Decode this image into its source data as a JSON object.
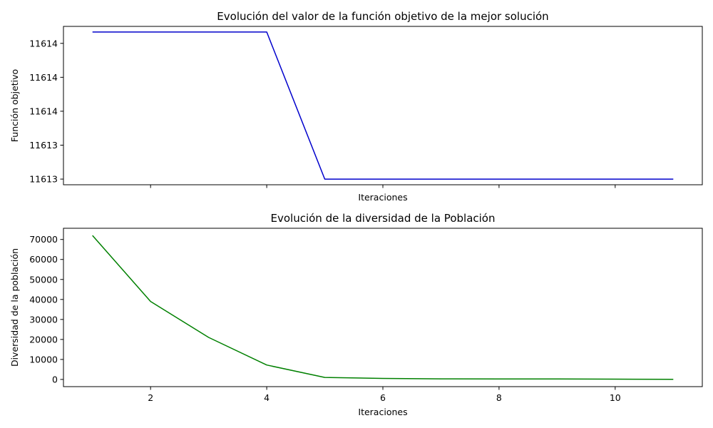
{
  "chart_data": [
    {
      "type": "line",
      "title": "Evolución del valor de la función objetivo de la mejor solución",
      "xlabel": "Iteraciones",
      "ylabel": "Función objetivo",
      "x": [
        1,
        2,
        3,
        4,
        5,
        6,
        7,
        8,
        9,
        10,
        11
      ],
      "series": [
        {
          "color": "#0000cc",
          "values": [
            11614.2,
            11614.2,
            11614.2,
            11614.2,
            11612.9,
            11612.9,
            11612.9,
            11612.9,
            11612.9,
            11612.9,
            11612.9
          ]
        }
      ],
      "xlim": [
        0.5,
        11.5
      ],
      "ylim": [
        11612.85,
        11614.25
      ],
      "xticks": [
        2,
        4,
        6,
        8,
        10
      ],
      "xtick_labels_visible": false,
      "yticks": [
        {
          "value": 11612.9,
          "label": "11613"
        },
        {
          "value": 11613.2,
          "label": "11613"
        },
        {
          "value": 11613.5,
          "label": "11614"
        },
        {
          "value": 11613.8,
          "label": "11614"
        },
        {
          "value": 11614.1,
          "label": "11614"
        }
      ],
      "grid": false,
      "legend": "none"
    },
    {
      "type": "line",
      "title": "Evolución de la diversidad de la Población",
      "xlabel": "Iteraciones",
      "ylabel": "Diversidad de la población",
      "x": [
        1,
        2,
        3,
        4,
        5,
        6,
        7,
        8,
        9,
        10,
        11
      ],
      "series": [
        {
          "color": "#008000",
          "values": [
            72000,
            39000,
            21000,
            7200,
            1000,
            500,
            300,
            250,
            200,
            150,
            50
          ]
        }
      ],
      "xlim": [
        0.5,
        11.5
      ],
      "ylim": [
        -3600,
        75600
      ],
      "xticks": [
        2,
        4,
        6,
        8,
        10
      ],
      "xtick_labels_visible": true,
      "yticks": [
        {
          "value": 0,
          "label": "0"
        },
        {
          "value": 10000,
          "label": "10000"
        },
        {
          "value": 20000,
          "label": "20000"
        },
        {
          "value": 30000,
          "label": "30000"
        },
        {
          "value": 40000,
          "label": "40000"
        },
        {
          "value": 50000,
          "label": "50000"
        },
        {
          "value": 60000,
          "label": "60000"
        },
        {
          "value": 70000,
          "label": "70000"
        }
      ],
      "grid": false,
      "legend": "none"
    }
  ]
}
